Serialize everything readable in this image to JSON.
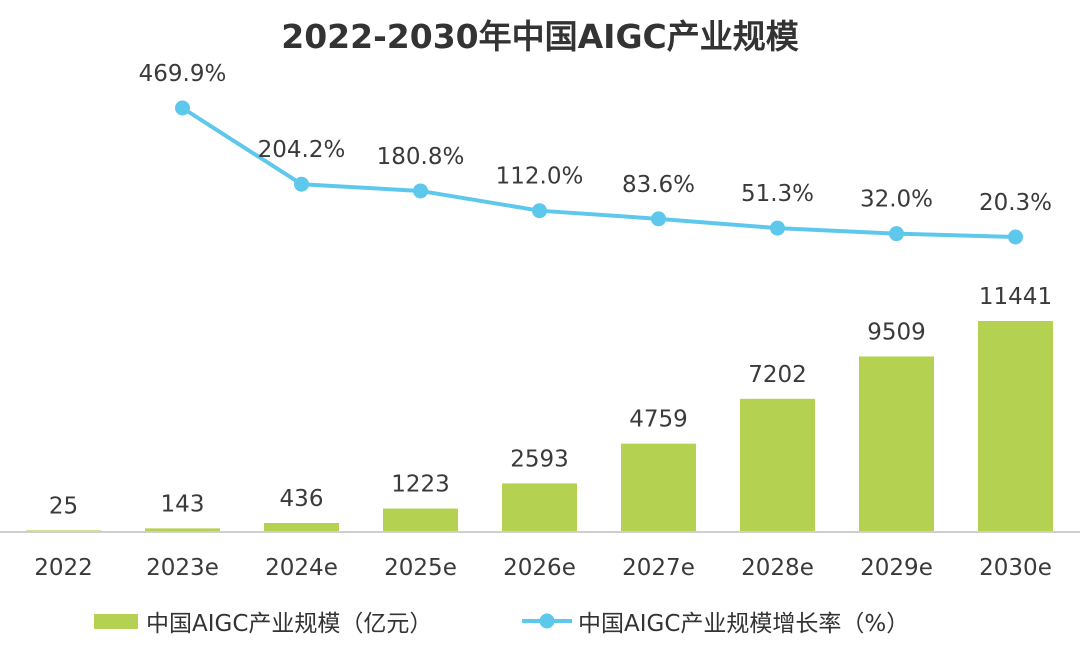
{
  "chart_data": {
    "type": "bar",
    "title": "2022-2030年中国AIGC产业规模",
    "categories": [
      "2022",
      "2023e",
      "2024e",
      "2025e",
      "2026e",
      "2027e",
      "2028e",
      "2029e",
      "2030e"
    ],
    "series": [
      {
        "name": "中国AIGC产业规模（亿元）",
        "type": "bar",
        "values": [
          25,
          143,
          436,
          1223,
          2593,
          4759,
          7202,
          9509,
          11441
        ],
        "color": "#b5d152"
      },
      {
        "name": "中国AIGC产业规模增长率（%）",
        "type": "line",
        "values": [
          null,
          469.9,
          204.2,
          180.8,
          112.0,
          83.6,
          51.3,
          32.0,
          20.3
        ],
        "labels": [
          "",
          "469.9%",
          "204.2%",
          "180.8%",
          "112.0%",
          "83.6%",
          "51.3%",
          "32.0%",
          "20.3%"
        ],
        "color": "#5ec8ec"
      }
    ],
    "bar_labels": [
      "25",
      "143",
      "436",
      "1223",
      "2593",
      "4759",
      "7202",
      "9509",
      "11441"
    ],
    "legend": {
      "position": "bottom"
    },
    "grid": false
  }
}
